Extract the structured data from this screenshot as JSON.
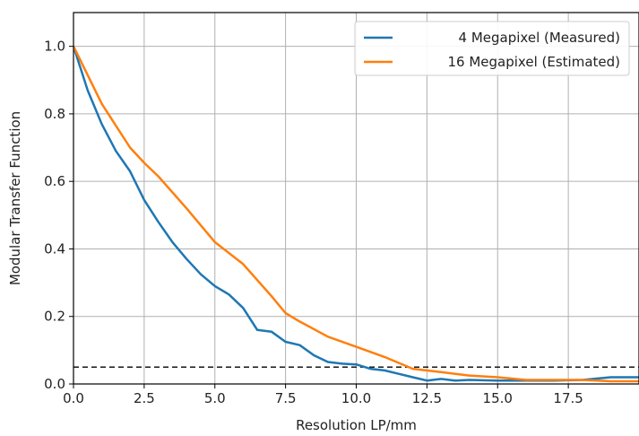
{
  "chart_data": {
    "type": "line",
    "title": "",
    "xlabel": "Resolution LP/mm",
    "ylabel": "Modular Transfer Function",
    "xlim": [
      0,
      20
    ],
    "ylim": [
      0,
      1.1
    ],
    "grid": true,
    "legend_position": "top-right",
    "x_ticks": [
      "0.0",
      "2.5",
      "5.0",
      "7.5",
      "10.0",
      "12.5",
      "15.0",
      "17.5"
    ],
    "y_ticks": [
      "0.0",
      "0.2",
      "0.4",
      "0.6",
      "0.8",
      "1.0"
    ],
    "x_tick_values": [
      0,
      2.5,
      5,
      7.5,
      10,
      12.5,
      15,
      17.5
    ],
    "y_tick_values": [
      0,
      0.2,
      0.4,
      0.6,
      0.8,
      1.0
    ],
    "reference_line": {
      "y": 0.05,
      "style": "dashed",
      "color": "#000000"
    },
    "series": [
      {
        "name": "4 Megapixel (Measured)",
        "color": "#1f77b4",
        "x": [
          0,
          0.5,
          1,
          1.5,
          2,
          2.5,
          3,
          3.5,
          4,
          4.5,
          5,
          5.5,
          6,
          6.5,
          7,
          7.5,
          8,
          8.5,
          9,
          9.5,
          10,
          10.5,
          11,
          11.5,
          12,
          12.5,
          13,
          13.5,
          14,
          15,
          16,
          17,
          18,
          19,
          20
        ],
        "y": [
          1.0,
          0.87,
          0.77,
          0.69,
          0.63,
          0.545,
          0.48,
          0.42,
          0.37,
          0.325,
          0.29,
          0.265,
          0.225,
          0.16,
          0.155,
          0.125,
          0.115,
          0.085,
          0.065,
          0.06,
          0.058,
          0.045,
          0.04,
          0.03,
          0.02,
          0.01,
          0.015,
          0.01,
          0.012,
          0.01,
          0.01,
          0.01,
          0.012,
          0.02,
          0.02
        ]
      },
      {
        "name": "16 Megapixel (Estimated)",
        "color": "#ff7f0e",
        "x": [
          0,
          1,
          2,
          2.5,
          3,
          4,
          5,
          6,
          7,
          7.5,
          8,
          9,
          10,
          11,
          12,
          13,
          14,
          15,
          16,
          17,
          18,
          19,
          20
        ],
        "y": [
          1.0,
          0.83,
          0.7,
          0.655,
          0.615,
          0.52,
          0.42,
          0.355,
          0.26,
          0.21,
          0.185,
          0.14,
          0.11,
          0.08,
          0.045,
          0.035,
          0.025,
          0.02,
          0.012,
          0.012,
          0.012,
          0.008,
          0.008
        ]
      }
    ]
  }
}
